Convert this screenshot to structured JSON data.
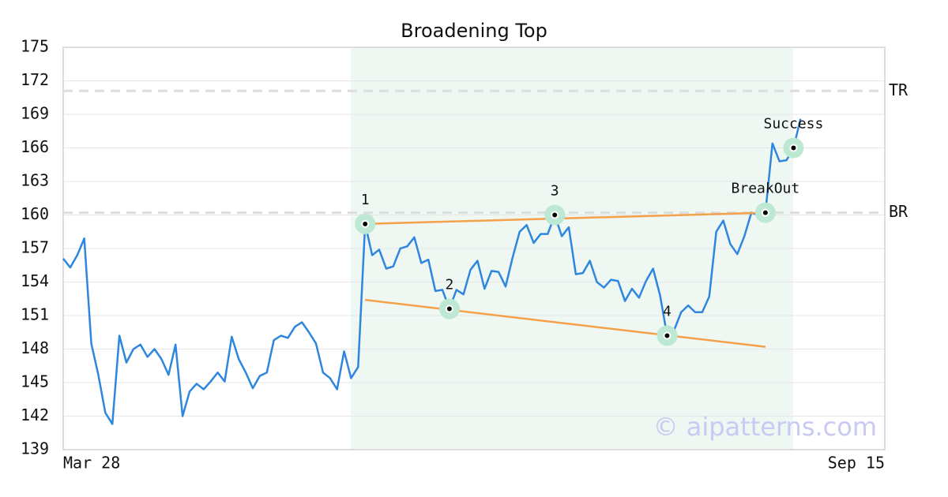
{
  "chart_data": {
    "type": "line",
    "title": "Broadening Top",
    "categories": [
      "Mar 28",
      null,
      null,
      null,
      null,
      null,
      null,
      null,
      null,
      null,
      null,
      null,
      null,
      null,
      null,
      null,
      null,
      null,
      null,
      null,
      null,
      null,
      null,
      null,
      null,
      null,
      null,
      null,
      null,
      null,
      null,
      null,
      null,
      null,
      null,
      null,
      null,
      null,
      null,
      null,
      null,
      null,
      null,
      null,
      null,
      null,
      null,
      null,
      null,
      null,
      null,
      null,
      null,
      null,
      null,
      null,
      null,
      null,
      null,
      null,
      null,
      null,
      null,
      null,
      null,
      null,
      null,
      null,
      null,
      null,
      null,
      null,
      null,
      null,
      null,
      null,
      null,
      null,
      null,
      null,
      null,
      null,
      null,
      null,
      null,
      null,
      null,
      null,
      null,
      null,
      null,
      null,
      null,
      null,
      null,
      null,
      null,
      null,
      null,
      null,
      null,
      null,
      null,
      null,
      null,
      null,
      null,
      null,
      null,
      null,
      null,
      null,
      null,
      null,
      null,
      null,
      null,
      "Sep 15"
    ],
    "series": [
      {
        "color": "#2e86de",
        "values": [
          156.1,
          155.3,
          156.4,
          157.9,
          148.5,
          145.7,
          142.3,
          141.3,
          149.2,
          146.8,
          148.0,
          148.4,
          147.3,
          148.0,
          147.1,
          145.7,
          148.4,
          142.0,
          144.2,
          144.9,
          144.4,
          145.1,
          145.9,
          145.1,
          149.1,
          147.1,
          145.9,
          144.5,
          145.6,
          145.9,
          148.8,
          149.2,
          149.0,
          150.0,
          150.4,
          149.5,
          148.5,
          145.9,
          145.4,
          144.4,
          147.8,
          145.4,
          146.4,
          159.2,
          156.4,
          156.9,
          155.2,
          155.4,
          157.0,
          157.2,
          158.0,
          155.7,
          156.0,
          153.2,
          153.3,
          151.6,
          153.3,
          152.9,
          155.1,
          155.9,
          153.4,
          155.0,
          154.9,
          153.6,
          156.2,
          158.5,
          159.1,
          157.5,
          158.3,
          158.3,
          160.0,
          158.1,
          158.9,
          154.7,
          154.8,
          155.9,
          154.0,
          153.5,
          154.2,
          154.1,
          152.3,
          153.4,
          152.6,
          154.1,
          155.2,
          152.8,
          149.2,
          149.7,
          151.3,
          151.9,
          151.3,
          151.3,
          152.7,
          158.5,
          159.5,
          157.4,
          156.5,
          158.1,
          160.2,
          160.0,
          160.2,
          166.4,
          164.8,
          164.9,
          166.0,
          168.6,
          null,
          null,
          null,
          null,
          null,
          null,
          null,
          null,
          null,
          null,
          null,
          null
        ]
      }
    ],
    "ylim": [
      139,
      175
    ],
    "yticks": [
      139,
      142,
      145,
      148,
      151,
      154,
      157,
      160,
      163,
      166,
      169,
      172,
      175
    ],
    "grid": true,
    "trendlines": [
      {
        "color": "#f5a04a",
        "from": 43,
        "to": 100,
        "values": [
          159.2,
          160.2
        ]
      },
      {
        "color": "#f5a04a",
        "from": 43,
        "to": 100,
        "values": [
          152.4,
          148.2
        ]
      }
    ],
    "annotations": [
      {
        "label": "1",
        "index": 43
      },
      {
        "label": "2",
        "index": 55
      },
      {
        "label": "3",
        "index": 70
      },
      {
        "label": "4",
        "index": 86
      },
      {
        "label": "BreakOut",
        "index": 100
      },
      {
        "label": "Success",
        "index": 104
      }
    ],
    "reference_lines": [
      {
        "label": "TR",
        "value": 171.1
      },
      {
        "label": "BR",
        "value": 160.2
      }
    ],
    "watermark": "© aipatterns.com"
  }
}
